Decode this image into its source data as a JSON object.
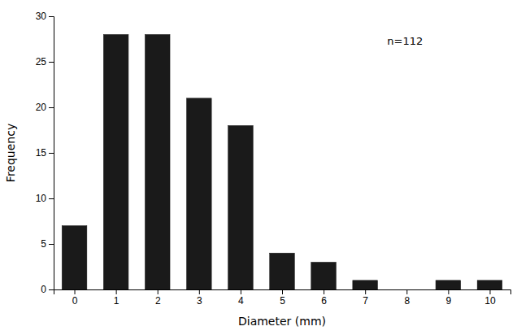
{
  "chart_data": {
    "type": "bar",
    "x": [
      0,
      1,
      2,
      3,
      4,
      5,
      6,
      7,
      8,
      9,
      10
    ],
    "values": [
      7,
      28,
      28,
      21,
      18,
      4,
      3,
      1,
      0,
      1,
      1
    ],
    "color": "#1a1a1a",
    "xlim": [
      -0.5,
      10.5
    ],
    "ylim": [
      0,
      30
    ],
    "xticks": [
      0,
      1,
      2,
      3,
      4,
      5,
      6,
      7,
      8,
      9,
      10
    ],
    "yticks": [
      0,
      5,
      10,
      15,
      20,
      25,
      30
    ],
    "xlabel": "Diameter (mm)",
    "ylabel": "Frequency",
    "annotation": "n=112",
    "grid": false
  }
}
